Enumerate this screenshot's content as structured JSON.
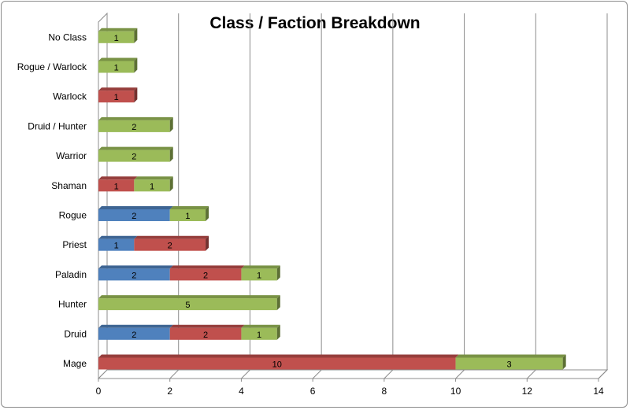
{
  "chart_data": {
    "type": "bar",
    "orientation": "horizontal",
    "stacked": true,
    "three_d": true,
    "title": "Class / Faction Breakdown",
    "xlabel": "",
    "ylabel": "",
    "xlim": [
      0,
      14
    ],
    "x_ticks": [
      0,
      2,
      4,
      6,
      8,
      10,
      12,
      14
    ],
    "grid": true,
    "legend": "none",
    "categories": [
      "Mage",
      "Druid",
      "Hunter",
      "Paladin",
      "Priest",
      "Rogue",
      "Shaman",
      "Warrior",
      "Druid / Hunter",
      "Warlock",
      "Rogue / Warlock",
      "No Class"
    ],
    "series": [
      {
        "color": "#4f81bd",
        "values": [
          0,
          2,
          0,
          2,
          1,
          2,
          0,
          0,
          0,
          0,
          0,
          0
        ]
      },
      {
        "color": "#c0504d",
        "values": [
          10,
          2,
          0,
          2,
          2,
          0,
          1,
          0,
          0,
          1,
          0,
          0
        ]
      },
      {
        "color": "#9bbb59",
        "values": [
          3,
          1,
          5,
          1,
          0,
          1,
          1,
          2,
          2,
          0,
          1,
          1
        ]
      }
    ]
  }
}
